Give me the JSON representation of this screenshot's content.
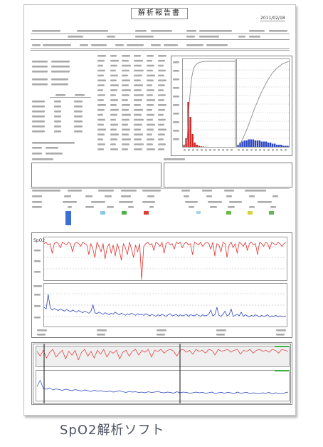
{
  "report": {
    "title": "解析報告書",
    "date": "2011/02/18"
  },
  "caption": "SpO2解析ソフト",
  "colors": {
    "spo2": "#e2312e",
    "hist_spo2": "#d02424",
    "pulse": "#2c46c2",
    "cumulative": "#8c8c8c",
    "overview_band": "#3cb043",
    "markers": [
      "#3b6fd6",
      "#86c9e6",
      "#52b04a",
      "#e0392f",
      "#a9d3ea",
      "#69bd45",
      "#d9d23c",
      "#5fb654"
    ]
  },
  "chart_data": [
    {
      "type": "bar",
      "ylim": [
        0,
        80
      ],
      "spo2_bins": [
        2,
        8,
        42,
        28,
        12,
        4,
        2,
        1,
        0.5,
        0.3,
        0.1,
        0.1,
        0,
        0,
        0,
        0,
        0,
        0,
        0,
        0,
        0,
        0,
        0,
        0
      ],
      "pulse_bins": [
        2,
        4,
        5,
        6,
        6,
        7,
        7,
        7,
        6,
        6,
        6,
        5,
        5,
        5,
        4,
        4,
        3,
        3,
        2,
        2,
        2,
        1,
        1,
        1
      ]
    },
    {
      "type": "line",
      "ylabel": "SpO2",
      "grid": true,
      "spo2_ylim": [
        70,
        100
      ],
      "pulse_ylim": [
        40,
        120
      ],
      "spo2": [
        96,
        97,
        95,
        96,
        89,
        96,
        97,
        96,
        93,
        97,
        96,
        95,
        97,
        96,
        90,
        96,
        97,
        96,
        94,
        97,
        96,
        95,
        88,
        96,
        92,
        86,
        97,
        94,
        90,
        96,
        85,
        93,
        96,
        89,
        95,
        87,
        96,
        91,
        84,
        96,
        93,
        88,
        97,
        92,
        86,
        95,
        90,
        96,
        70,
        94,
        96,
        97,
        95,
        96,
        91,
        97,
        96,
        94,
        97,
        89,
        96,
        97,
        95,
        96,
        92,
        97,
        96,
        97,
        93,
        96,
        97,
        95,
        96,
        88,
        97,
        96,
        95,
        97,
        94,
        96,
        97,
        96,
        92,
        97,
        87,
        96,
        95,
        90,
        97,
        96,
        86,
        95,
        97,
        93,
        96,
        89,
        97,
        96,
        94,
        97,
        91,
        96,
        97,
        95,
        96,
        88,
        97,
        96,
        94,
        97,
        96,
        92,
        97,
        96,
        95,
        97,
        96,
        94,
        96,
        97
      ],
      "pulse": [
        75,
        72,
        100,
        74,
        70,
        73,
        71,
        69,
        72,
        70,
        68,
        71,
        69,
        67,
        70,
        68,
        66,
        69,
        67,
        65,
        68,
        66,
        64,
        67,
        80,
        65,
        63,
        66,
        64,
        62,
        65,
        63,
        61,
        64,
        62,
        66,
        63,
        61,
        64,
        62,
        60,
        63,
        61,
        64,
        62,
        60,
        63,
        61,
        62,
        60,
        63,
        61,
        59,
        62,
        60,
        58,
        61,
        59,
        62,
        60,
        58,
        61,
        63,
        59,
        60,
        62,
        58,
        61,
        59,
        60,
        62,
        58,
        61,
        60,
        59,
        62,
        60,
        58,
        61,
        59,
        60,
        62,
        70,
        59,
        61,
        75,
        60,
        58,
        62,
        68,
        59,
        61,
        72,
        58,
        60,
        62,
        59,
        66,
        58,
        61,
        59,
        57,
        60,
        58,
        61,
        59,
        57,
        60,
        58,
        59,
        61,
        57,
        59,
        58,
        60,
        57,
        59,
        58,
        57,
        59
      ]
    },
    {
      "type": "line",
      "spo2_ylim": [
        80,
        100
      ],
      "pulse_ylim": [
        40,
        120
      ],
      "spo2": [
        95,
        90,
        96,
        88,
        94,
        97,
        89,
        93,
        96,
        87,
        95,
        91,
        96,
        86,
        94,
        97,
        90,
        95,
        88,
        96,
        92,
        97,
        89,
        95,
        93,
        96,
        87,
        94,
        96,
        90,
        95,
        97,
        91,
        96,
        94,
        97,
        89,
        96,
        95,
        97,
        93,
        96,
        97,
        95,
        90,
        96,
        97,
        94,
        96,
        92,
        97,
        95,
        96,
        93,
        97,
        96,
        91,
        97,
        95,
        96,
        97,
        94,
        96,
        97,
        92,
        96,
        95,
        97,
        93,
        96,
        97,
        95,
        96,
        94,
        97,
        96,
        93,
        97,
        96,
        95
      ],
      "pulse": [
        78,
        95,
        72,
        70,
        74,
        68,
        71,
        69,
        67,
        70,
        68,
        66,
        69,
        67,
        65,
        68,
        66,
        64,
        67,
        65,
        66,
        64,
        63,
        65,
        62,
        64,
        66,
        63,
        61,
        64,
        62,
        63,
        61,
        62,
        60,
        63,
        61,
        62,
        64,
        61,
        60,
        62,
        61,
        59,
        63,
        60,
        62,
        61,
        59,
        60,
        62,
        60,
        61,
        59,
        60,
        62,
        58,
        60,
        61,
        59,
        61,
        60,
        58,
        62,
        59,
        60,
        61,
        58,
        60,
        59,
        58,
        60,
        59,
        61,
        57,
        60,
        59,
        58,
        60,
        62
      ]
    }
  ]
}
